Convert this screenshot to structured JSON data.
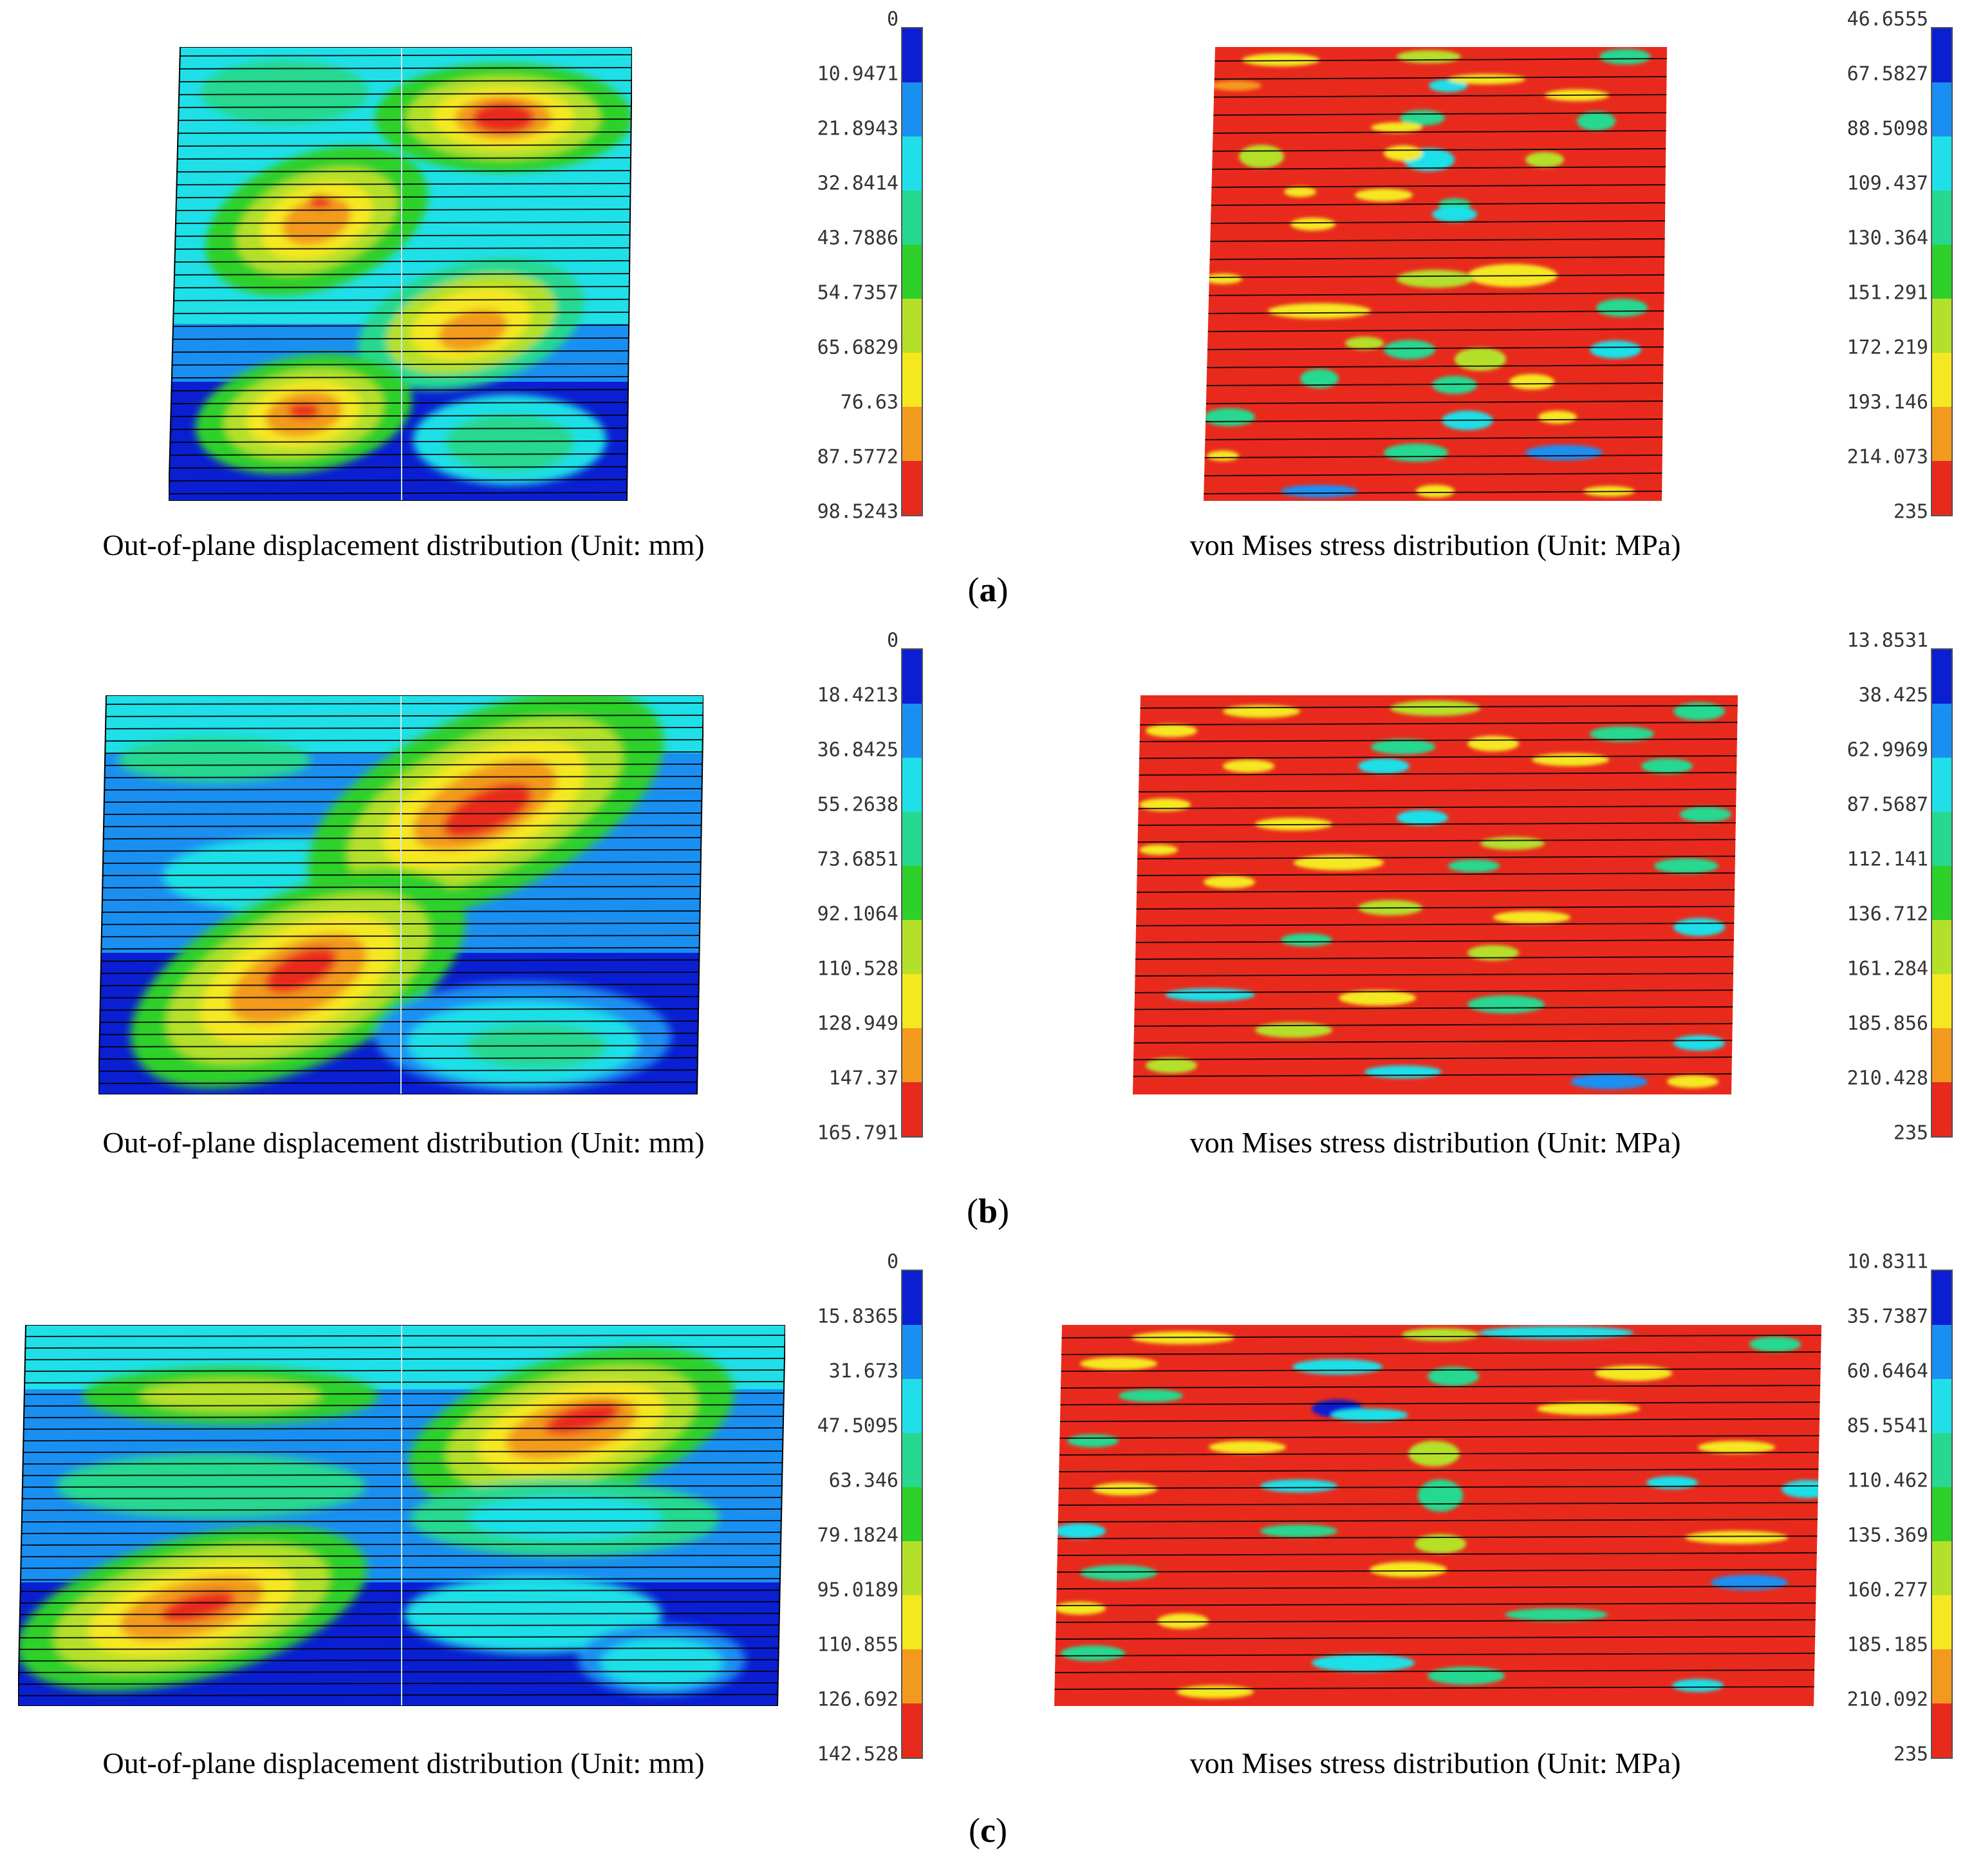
{
  "colors": [
    "#0a1fd1",
    "#1a8ff2",
    "#1fe0e8",
    "#27d890",
    "#2ed02a",
    "#b5e02a",
    "#f5e820",
    "#f29a1e",
    "#e82a1c"
  ],
  "panels": [
    {
      "label": "a",
      "left_caption": "Out-of-plane displacement distribution (Unit: mm)",
      "right_caption": "von Mises stress distribution (Unit: MPa)",
      "left_legend": [
        "0",
        "10.9471",
        "21.8943",
        "32.8414",
        "43.7886",
        "54.7357",
        "65.6829",
        "76.63",
        "87.5772",
        "98.5243"
      ],
      "right_legend": [
        "46.6555",
        "67.5827",
        "88.5098",
        "109.437",
        "130.364",
        "151.291",
        "172.219",
        "193.146",
        "214.073",
        "235"
      ]
    },
    {
      "label": "b",
      "left_caption": "Out-of-plane displacement distribution (Unit: mm)",
      "right_caption": "von Mises stress distribution (Unit: MPa)",
      "left_legend": [
        "0",
        "18.4213",
        "36.8425",
        "55.2638",
        "73.6851",
        "92.1064",
        "110.528",
        "128.949",
        "147.37",
        "165.791"
      ],
      "right_legend": [
        "13.8531",
        "38.425",
        "62.9969",
        "87.5687",
        "112.141",
        "136.712",
        "161.284",
        "185.856",
        "210.428",
        "235"
      ]
    },
    {
      "label": "c",
      "left_caption": "Out-of-plane displacement distribution (Unit: mm)",
      "right_caption": "von Mises stress distribution (Unit: MPa)",
      "left_legend": [
        "0",
        "15.8365",
        "31.673",
        "47.5095",
        "63.346",
        "79.1824",
        "95.0189",
        "110.855",
        "126.692",
        "142.528"
      ],
      "right_legend": [
        "10.8311",
        "35.7387",
        "60.6464",
        "85.5541",
        "110.462",
        "135.369",
        "160.277",
        "185.185",
        "210.092",
        "235"
      ]
    }
  ]
}
